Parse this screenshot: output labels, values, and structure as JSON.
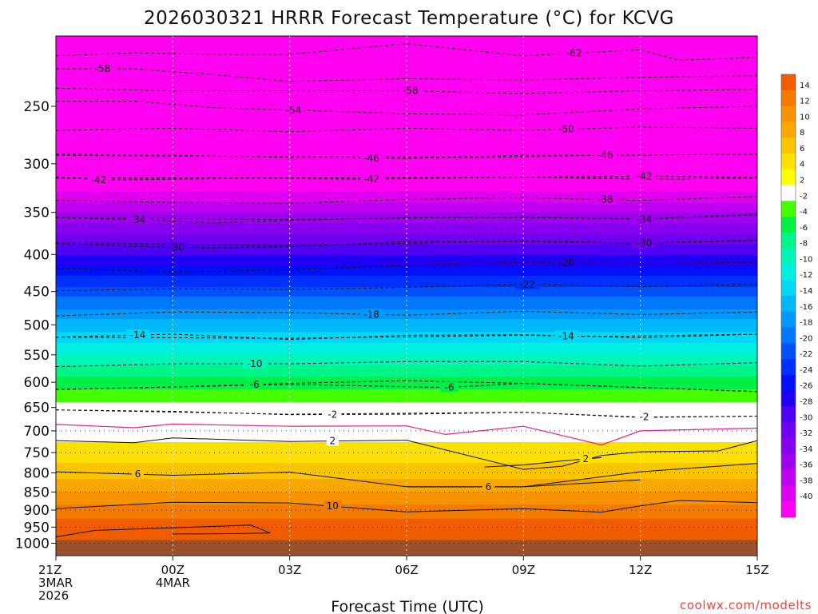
{
  "chart_data": {
    "type": "heatmap",
    "title": "2026030321 HRRR Forecast Temperature (°C) for KCVG",
    "xlabel": "Forecast Time (UTC)",
    "ylabel": "",
    "credit": "coolwx.com/modelts",
    "x_ticks": [
      {
        "hour": 0,
        "lines": [
          "21Z",
          "3MAR",
          "2026"
        ]
      },
      {
        "hour": 3,
        "lines": [
          "00Z",
          "4MAR"
        ]
      },
      {
        "hour": 6,
        "lines": [
          "03Z"
        ]
      },
      {
        "hour": 9,
        "lines": [
          "06Z"
        ]
      },
      {
        "hour": 12,
        "lines": [
          "09Z"
        ]
      },
      {
        "hour": 15,
        "lines": [
          "12Z"
        ]
      },
      {
        "hour": 18,
        "lines": [
          "15Z"
        ]
      }
    ],
    "xlim": [
      0,
      18
    ],
    "ylim_hpa": [
      200,
      1040
    ],
    "y_ticks": [
      250,
      300,
      350,
      400,
      450,
      500,
      550,
      600,
      650,
      700,
      750,
      800,
      850,
      900,
      950,
      1000
    ],
    "surface_pressure_hpa": 990,
    "colorbar": {
      "labels": [
        "14",
        "12",
        "10",
        "8",
        "6",
        "4",
        "2",
        "-2",
        "-4",
        "-6",
        "-8",
        "-10",
        "-12",
        "-14",
        "-16",
        "-18",
        "-20",
        "-22",
        "-24",
        "-26",
        "-28",
        "-30",
        "-32",
        "-34",
        "-36",
        "-38",
        "-40"
      ],
      "colors": [
        "#f25c00",
        "#f57a00",
        "#f79300",
        "#f8a800",
        "#fbc400",
        "#fbe000",
        "#ffff00",
        "#ffffff",
        "#44ff00",
        "#00f048",
        "#00f588",
        "#00f5b8",
        "#00f0e0",
        "#00d8f5",
        "#00b8f8",
        "#0098fb",
        "#0078fb",
        "#0050fb",
        "#0030fb",
        "#0010f8",
        "#2000f5",
        "#5000f2",
        "#7000f0",
        "#8800f0",
        "#a000f0",
        "#c000f0",
        "#e000f0",
        "#ff00f0"
      ]
    },
    "temperature_profile": {
      "pressure_hpa": [
        210,
        250,
        300,
        350,
        400,
        450,
        500,
        550,
        600,
        650,
        700,
        750,
        800,
        850,
        900,
        950,
        1000
      ],
      "temperature_c": [
        -62,
        -56,
        -45,
        -36,
        -28,
        -21,
        -15,
        -10,
        -5,
        -1,
        1,
        3,
        5,
        8,
        11,
        13,
        15
      ]
    },
    "contours": [
      {
        "level": -62,
        "style": "dashed",
        "points": [
          [
            0,
            213
          ],
          [
            2,
            211
          ],
          [
            4,
            212
          ],
          [
            6,
            212
          ],
          [
            9,
            205
          ],
          [
            12,
            213
          ],
          [
            15,
            209
          ],
          [
            16,
            216
          ],
          [
            18,
            214
          ]
        ],
        "label_hour": 13.3
      },
      {
        "level": -58,
        "style": "dashed",
        "points": [
          [
            0,
            222
          ],
          [
            2,
            222
          ],
          [
            4,
            226
          ],
          [
            6,
            231
          ],
          [
            9,
            229
          ],
          [
            12,
            230
          ],
          [
            15,
            228
          ],
          [
            18,
            227
          ]
        ],
        "label_hour": 1.2
      },
      {
        "level": -58,
        "style": "dashed",
        "points": [
          [
            0,
            236
          ],
          [
            3,
            238
          ],
          [
            6,
            238
          ],
          [
            9,
            238
          ],
          [
            12,
            240
          ],
          [
            15,
            238
          ],
          [
            18,
            237
          ]
        ],
        "label_hour": 9.1
      },
      {
        "level": -54,
        "style": "dashed",
        "points": [
          [
            0,
            246
          ],
          [
            2,
            246
          ],
          [
            4,
            251
          ],
          [
            6,
            253
          ],
          [
            9,
            256
          ],
          [
            12,
            257
          ],
          [
            15,
            252
          ],
          [
            18,
            250
          ]
        ],
        "label_hour": 6.1
      },
      {
        "level": -50,
        "style": "dashed",
        "points": [
          [
            0,
            270
          ],
          [
            3,
            268
          ],
          [
            6,
            271
          ],
          [
            9,
            268
          ],
          [
            12,
            270
          ],
          [
            15,
            267
          ],
          [
            18,
            268
          ]
        ],
        "label_hour": 13.1
      },
      {
        "level": -46,
        "style": "dashed",
        "points": [
          [
            0,
            291
          ],
          [
            3,
            292
          ],
          [
            6,
            294
          ],
          [
            9,
            295
          ],
          [
            12,
            292
          ],
          [
            15,
            292
          ],
          [
            18,
            291
          ]
        ],
        "label_hour": 8.1
      },
      {
        "level": -46,
        "style": "dashed",
        "points": [
          [
            0,
            292
          ],
          [
            4,
            293
          ],
          [
            7,
            293
          ],
          [
            11,
            294
          ],
          [
            14,
            292
          ],
          [
            18,
            291
          ]
        ],
        "label_hour": 14.1
      },
      {
        "level": -42,
        "style": "dashed",
        "points": [
          [
            0,
            313
          ],
          [
            1.3,
            316
          ],
          [
            3,
            315
          ],
          [
            6,
            314
          ],
          [
            9,
            314
          ],
          [
            12,
            313
          ],
          [
            15,
            315
          ],
          [
            18,
            314
          ]
        ],
        "label_hour": 1.1
      },
      {
        "level": -42,
        "style": "dashed",
        "points": [
          [
            0,
            314
          ],
          [
            4,
            314
          ],
          [
            8,
            315
          ],
          [
            12,
            313
          ],
          [
            16,
            315
          ],
          [
            18,
            313
          ]
        ],
        "label_hour": 8.1
      },
      {
        "level": -42,
        "style": "dashed",
        "points": [
          [
            0,
            314
          ],
          [
            6,
            314
          ],
          [
            12,
            313
          ],
          [
            15,
            312
          ],
          [
            18,
            313
          ]
        ],
        "label_hour": 15.1
      },
      {
        "level": -38,
        "style": "dashed",
        "points": [
          [
            0,
            337
          ],
          [
            3,
            339
          ],
          [
            6,
            340
          ],
          [
            9,
            336
          ],
          [
            12,
            334
          ],
          [
            15,
            337
          ],
          [
            18,
            333
          ]
        ],
        "label_hour": 14.1
      },
      {
        "level": -34,
        "style": "dashed",
        "points": [
          [
            0,
            356
          ],
          [
            2,
            358
          ],
          [
            4,
            362
          ],
          [
            6,
            359
          ],
          [
            9,
            356
          ],
          [
            12,
            356
          ],
          [
            15,
            357
          ],
          [
            18,
            353
          ]
        ],
        "label_hour": 2.1
      },
      {
        "level": -34,
        "style": "dashed",
        "points": [
          [
            0,
            356
          ],
          [
            6,
            358
          ],
          [
            12,
            355
          ],
          [
            15,
            358
          ],
          [
            18,
            352
          ]
        ],
        "label_hour": 15.1
      },
      {
        "level": -30,
        "style": "dashed",
        "points": [
          [
            0,
            386
          ],
          [
            2,
            390
          ],
          [
            4,
            392
          ],
          [
            6,
            390
          ],
          [
            9,
            384
          ],
          [
            12,
            384
          ],
          [
            15,
            386
          ],
          [
            18,
            383
          ]
        ],
        "label_hour": 3.1
      },
      {
        "level": -30,
        "style": "dashed",
        "points": [
          [
            0,
            385
          ],
          [
            6,
            389
          ],
          [
            12,
            383
          ],
          [
            15,
            386
          ],
          [
            18,
            382
          ]
        ],
        "label_hour": 15.1
      },
      {
        "level": -26,
        "style": "dashed",
        "points": [
          [
            0,
            418
          ],
          [
            3,
            423
          ],
          [
            6,
            420
          ],
          [
            9,
            414
          ],
          [
            12,
            410
          ],
          [
            15,
            412
          ],
          [
            18,
            410
          ]
        ],
        "label_hour": 13.1
      },
      {
        "level": -22,
        "style": "dashed",
        "points": [
          [
            0,
            449
          ],
          [
            3,
            446
          ],
          [
            6,
            447
          ],
          [
            9,
            444
          ],
          [
            12,
            440
          ],
          [
            15,
            443
          ],
          [
            18,
            440
          ]
        ],
        "label_hour": 12.1
      },
      {
        "level": -18,
        "style": "dashed",
        "points": [
          [
            0,
            486
          ],
          [
            3,
            480
          ],
          [
            6,
            481
          ],
          [
            9,
            485
          ],
          [
            12,
            479
          ],
          [
            15,
            484
          ],
          [
            18,
            480
          ]
        ],
        "label_hour": 8.1
      },
      {
        "level": -14,
        "style": "dashed",
        "points": [
          [
            0,
            520
          ],
          [
            3,
            515
          ],
          [
            6,
            524
          ],
          [
            9,
            517
          ],
          [
            12,
            516
          ],
          [
            15,
            521
          ],
          [
            18,
            515
          ]
        ],
        "label_hour": 2.1
      },
      {
        "level": -14,
        "style": "dashed",
        "points": [
          [
            0,
            520
          ],
          [
            6,
            522
          ],
          [
            12,
            517
          ],
          [
            14,
            519
          ],
          [
            18,
            515
          ]
        ],
        "label_hour": 13.1
      },
      {
        "level": -10,
        "style": "dashed",
        "points": [
          [
            0,
            571
          ],
          [
            3,
            566
          ],
          [
            6,
            566
          ],
          [
            9,
            562
          ],
          [
            12,
            562
          ],
          [
            15,
            570
          ],
          [
            18,
            564
          ]
        ],
        "label_hour": 5.1
      },
      {
        "level": -6,
        "style": "dashed",
        "points": [
          [
            0,
            614
          ],
          [
            3,
            609
          ],
          [
            6,
            602
          ],
          [
            9,
            597
          ],
          [
            12,
            602
          ],
          [
            15,
            610
          ],
          [
            18,
            618
          ]
        ],
        "label_hour": 5.1
      },
      {
        "level": -6,
        "style": "dashed",
        "points": [
          [
            0,
            614
          ],
          [
            6,
            604
          ],
          [
            10,
            610
          ],
          [
            12,
            602
          ],
          [
            18,
            618
          ]
        ],
        "label_hour": 10.1
      },
      {
        "level": -2,
        "style": "dashed",
        "points": [
          [
            0,
            655
          ],
          [
            3,
            658
          ],
          [
            6,
            665
          ],
          [
            9,
            664
          ],
          [
            12,
            660
          ],
          [
            15,
            671
          ],
          [
            18,
            668
          ]
        ],
        "label_hour": 7.1
      },
      {
        "level": -2,
        "style": "dashed",
        "points": [
          [
            0,
            655
          ],
          [
            6,
            664
          ],
          [
            12,
            660
          ],
          [
            15,
            670
          ],
          [
            18,
            668
          ]
        ],
        "label_hour": 15.1
      },
      {
        "level": 0,
        "style": "solid",
        "color": "#e8208a",
        "points": [
          [
            0,
            686
          ],
          [
            2,
            693
          ],
          [
            3,
            685
          ],
          [
            6,
            690
          ],
          [
            9,
            689
          ],
          [
            10,
            708
          ],
          [
            12,
            690
          ],
          [
            14,
            732
          ],
          [
            15,
            700
          ],
          [
            18,
            694
          ]
        ],
        "label_hour": null
      },
      {
        "level": 2,
        "style": "solid",
        "points": [
          [
            0,
            722
          ],
          [
            2,
            727
          ],
          [
            3,
            716
          ],
          [
            6,
            724
          ],
          [
            9,
            721
          ],
          [
            12,
            791
          ],
          [
            13,
            783
          ],
          [
            14,
            757
          ],
          [
            15,
            748
          ],
          [
            17,
            746
          ],
          [
            18,
            722
          ]
        ],
        "label_hour": 7.1
      },
      {
        "level": 2,
        "style": "solid",
        "points": [
          [
            11,
            785
          ],
          [
            12,
            780
          ],
          [
            13,
            770
          ],
          [
            14,
            762
          ]
        ],
        "label_hour": 13.6
      },
      {
        "level": 6,
        "style": "solid",
        "points": [
          [
            0,
            797
          ],
          [
            3,
            806
          ],
          [
            6,
            798
          ],
          [
            9,
            836
          ],
          [
            12,
            836
          ],
          [
            15,
            797
          ],
          [
            18,
            776
          ]
        ],
        "label_hour": 2.1
      },
      {
        "level": 6,
        "style": "solid",
        "points": [
          [
            9,
            836
          ],
          [
            12,
            836
          ],
          [
            15,
            818
          ]
        ],
        "label_hour": 11.1
      },
      {
        "level": 10,
        "style": "solid",
        "points": [
          [
            0,
            896
          ],
          [
            3,
            878
          ],
          [
            6,
            880
          ],
          [
            9,
            905
          ],
          [
            12,
            896
          ],
          [
            14,
            906
          ],
          [
            15,
            888
          ],
          [
            16,
            873
          ],
          [
            18,
            879
          ]
        ],
        "label_hour": 7.1
      },
      {
        "level": 14,
        "style": "solid",
        "points": [
          [
            0,
            980
          ],
          [
            1,
            960
          ],
          [
            4,
            948
          ],
          [
            5,
            944
          ],
          [
            5.5,
            968
          ],
          [
            4.5,
            970
          ],
          [
            3,
            971
          ]
        ],
        "label_hour": null
      }
    ]
  }
}
